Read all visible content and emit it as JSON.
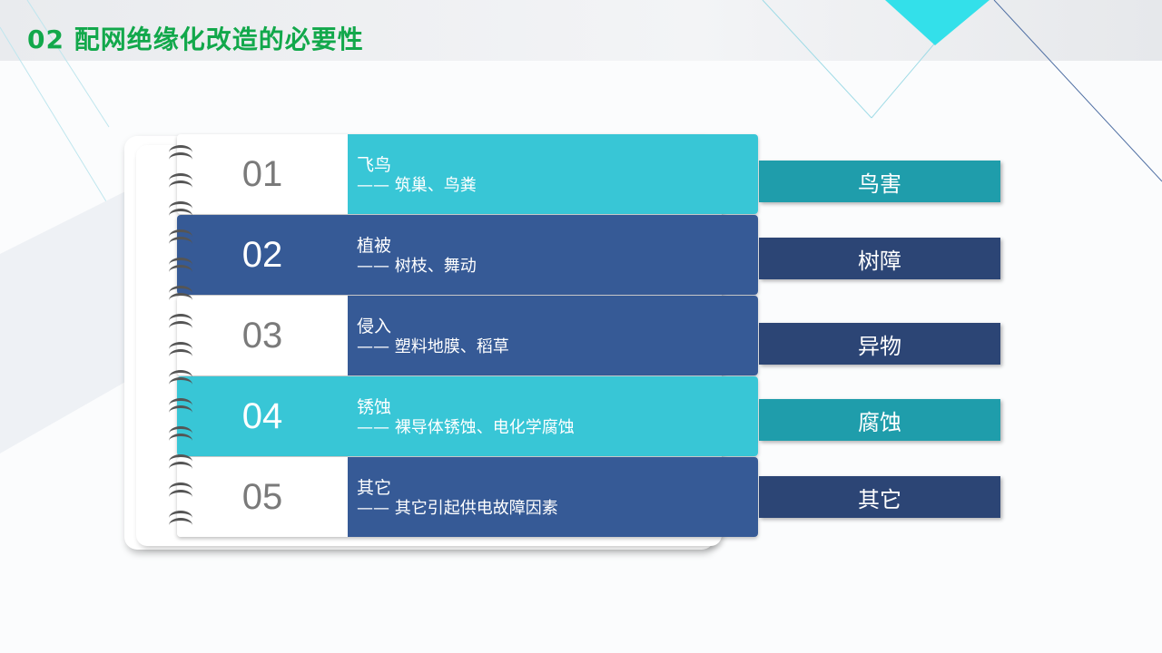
{
  "title": "02 配网绝缘化改造的必要性",
  "colors": {
    "cyan": "#38c6d6",
    "blue": "#365a96",
    "tag_cyan": "#1f9dab",
    "tag_blue": "#2c4575",
    "title": "#12a84b"
  },
  "rows": [
    {
      "num": "01",
      "heading": "飞鸟",
      "detail": "—— 筑巢、鸟粪",
      "tag": "鸟害"
    },
    {
      "num": "02",
      "heading": "植被",
      "detail": "—— 树枝、舞动",
      "tag": "树障"
    },
    {
      "num": "03",
      "heading": "侵入",
      "detail": "—— 塑料地膜、稻草",
      "tag": "异物"
    },
    {
      "num": "04",
      "heading": "锈蚀",
      "detail": "—— 裸导体锈蚀、电化学腐蚀",
      "tag": "腐蚀"
    },
    {
      "num": "05",
      "heading": "其它",
      "detail": "—— 其它引起供电故障因素",
      "tag": "其它"
    }
  ]
}
